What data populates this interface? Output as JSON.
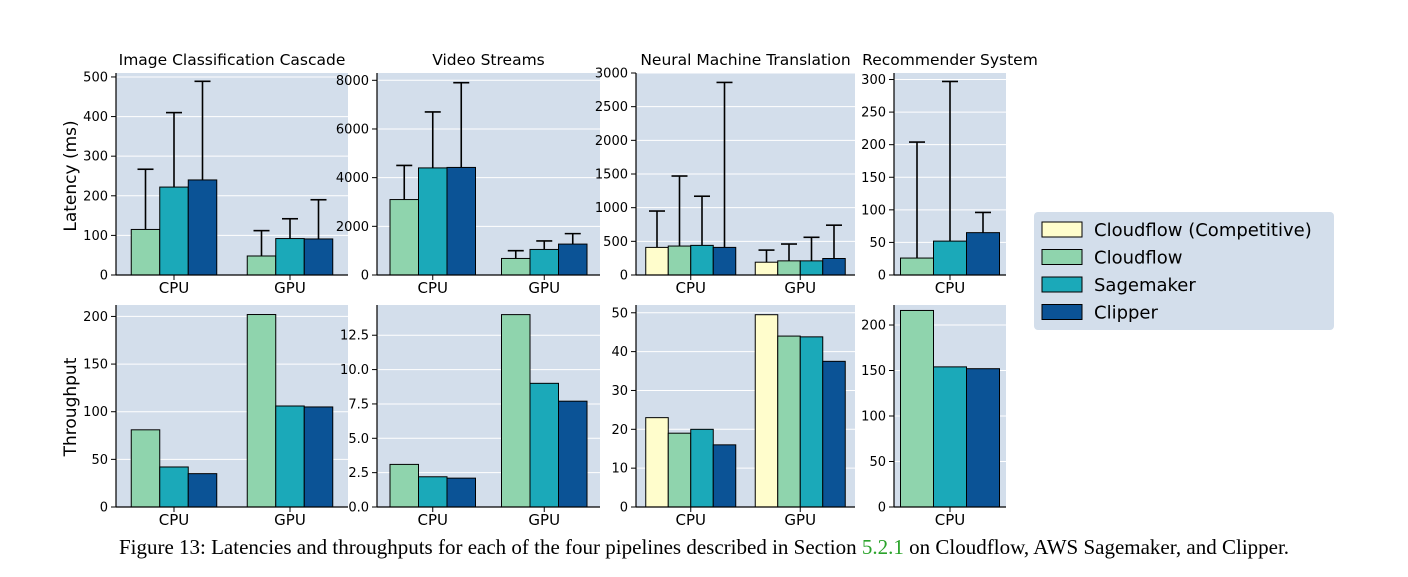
{
  "colors": {
    "panel_bg": "#d3deeb",
    "grid": "#ffffff",
    "cloudflow_competitive": "#fffdcc",
    "cloudflow": "#8fd4ad",
    "sagemaker": "#1ba9b9",
    "clipper": "#0b5396",
    "legend_bg": "#d3deeb",
    "caption_ref": "#2aa32a"
  },
  "legend": {
    "items": [
      {
        "label": "Cloudflow (Competitive)",
        "color_key": "cloudflow_competitive"
      },
      {
        "label": "Cloudflow",
        "color_key": "cloudflow"
      },
      {
        "label": "Sagemaker",
        "color_key": "sagemaker"
      },
      {
        "label": "Clipper",
        "color_key": "clipper"
      }
    ]
  },
  "row_labels": {
    "latency": "Latency (ms)",
    "throughput": "Throughput"
  },
  "caption": {
    "prefix": "Figure 13: Latencies and throughputs for each of the four pipelines described in Section ",
    "ref": "5.2.1",
    "suffix": " on Cloudflow, AWS Sagemaker, and Clipper."
  },
  "chart_data": [
    {
      "type": "bar",
      "id": "icc-latency",
      "title": "Image Classification Cascade",
      "xlabel": "",
      "ylabel": "Latency (ms)",
      "ylim": [
        0,
        510
      ],
      "yticks": [
        0,
        100,
        200,
        300,
        400,
        500
      ],
      "ytick_labels": [
        "0",
        "100",
        "200",
        "300",
        "400",
        "500"
      ],
      "categories": [
        "CPU",
        "GPU"
      ],
      "series": [
        {
          "name": "Cloudflow",
          "color_key": "cloudflow",
          "values": [
            115,
            48
          ],
          "err_upper": [
            267,
            112
          ]
        },
        {
          "name": "Sagemaker",
          "color_key": "sagemaker",
          "values": [
            222,
            92
          ],
          "err_upper": [
            410,
            142
          ]
        },
        {
          "name": "Clipper",
          "color_key": "clipper",
          "values": [
            240,
            91
          ],
          "err_upper": [
            489,
            190
          ]
        }
      ]
    },
    {
      "type": "bar",
      "id": "vs-latency",
      "title": "Video Streams",
      "xlabel": "",
      "ylabel": "",
      "ylim": [
        0,
        8300
      ],
      "yticks": [
        0,
        2000,
        4000,
        6000,
        8000
      ],
      "ytick_labels": [
        "0",
        "2000",
        "4000",
        "6000",
        "8000"
      ],
      "categories": [
        "CPU",
        "GPU"
      ],
      "series": [
        {
          "name": "Cloudflow",
          "color_key": "cloudflow",
          "values": [
            3100,
            680
          ],
          "err_upper": [
            4500,
            1000
          ]
        },
        {
          "name": "Sagemaker",
          "color_key": "sagemaker",
          "values": [
            4400,
            1050
          ],
          "err_upper": [
            6700,
            1400
          ]
        },
        {
          "name": "Clipper",
          "color_key": "clipper",
          "values": [
            4420,
            1270
          ],
          "err_upper": [
            7900,
            1700
          ]
        }
      ]
    },
    {
      "type": "bar",
      "id": "nmt-latency",
      "title": "Neural Machine Translation",
      "xlabel": "",
      "ylabel": "",
      "ylim": [
        0,
        3000
      ],
      "yticks": [
        0,
        500,
        1000,
        1500,
        2000,
        2500,
        3000
      ],
      "ytick_labels": [
        "0",
        "500",
        "1000",
        "1500",
        "2000",
        "2500",
        "3000"
      ],
      "categories": [
        "CPU",
        "GPU"
      ],
      "series": [
        {
          "name": "Cloudflow (Competitive)",
          "color_key": "cloudflow_competitive",
          "values": [
            410,
            190
          ],
          "err_upper": [
            950,
            370
          ]
        },
        {
          "name": "Cloudflow",
          "color_key": "cloudflow",
          "values": [
            430,
            210
          ],
          "err_upper": [
            1470,
            460
          ]
        },
        {
          "name": "Sagemaker",
          "color_key": "sagemaker",
          "values": [
            440,
            210
          ],
          "err_upper": [
            1170,
            560
          ]
        },
        {
          "name": "Clipper",
          "color_key": "clipper",
          "values": [
            410,
            245
          ],
          "err_upper": [
            2860,
            740
          ]
        }
      ]
    },
    {
      "type": "bar",
      "id": "rs-latency",
      "title": "Recommender System",
      "xlabel": "",
      "ylabel": "",
      "ylim": [
        0,
        310
      ],
      "yticks": [
        0,
        50,
        100,
        150,
        200,
        250,
        300
      ],
      "ytick_labels": [
        "0",
        "50",
        "100",
        "150",
        "200",
        "250",
        "300"
      ],
      "categories": [
        "CPU"
      ],
      "series": [
        {
          "name": "Cloudflow",
          "color_key": "cloudflow",
          "values": [
            26
          ],
          "err_upper": [
            204
          ]
        },
        {
          "name": "Sagemaker",
          "color_key": "sagemaker",
          "values": [
            52
          ],
          "err_upper": [
            297
          ]
        },
        {
          "name": "Clipper",
          "color_key": "clipper",
          "values": [
            65
          ],
          "err_upper": [
            96
          ]
        }
      ]
    },
    {
      "type": "bar",
      "id": "icc-throughput",
      "title": "",
      "xlabel": "",
      "ylabel": "Throughput",
      "ylim": [
        0,
        212
      ],
      "yticks": [
        0,
        50,
        100,
        150,
        200
      ],
      "ytick_labels": [
        "0",
        "50",
        "100",
        "150",
        "200"
      ],
      "categories": [
        "CPU",
        "GPU"
      ],
      "series": [
        {
          "name": "Cloudflow",
          "color_key": "cloudflow",
          "values": [
            81,
            202
          ]
        },
        {
          "name": "Sagemaker",
          "color_key": "sagemaker",
          "values": [
            42,
            106
          ]
        },
        {
          "name": "Clipper",
          "color_key": "clipper",
          "values": [
            35,
            105
          ]
        }
      ]
    },
    {
      "type": "bar",
      "id": "vs-throughput",
      "title": "",
      "xlabel": "",
      "ylabel": "",
      "ylim": [
        0,
        14.7
      ],
      "yticks": [
        0,
        2.5,
        5,
        7.5,
        10,
        12.5
      ],
      "ytick_labels": [
        "0.0",
        "2.5",
        "5.0",
        "7.5",
        "10.0",
        "12.5"
      ],
      "categories": [
        "CPU",
        "GPU"
      ],
      "series": [
        {
          "name": "Cloudflow",
          "color_key": "cloudflow",
          "values": [
            3.1,
            14.0
          ]
        },
        {
          "name": "Sagemaker",
          "color_key": "sagemaker",
          "values": [
            2.2,
            9.0
          ]
        },
        {
          "name": "Clipper",
          "color_key": "clipper",
          "values": [
            2.1,
            7.7
          ]
        }
      ]
    },
    {
      "type": "bar",
      "id": "nmt-throughput",
      "title": "",
      "xlabel": "",
      "ylabel": "",
      "ylim": [
        0,
        52
      ],
      "yticks": [
        0,
        10,
        20,
        30,
        40,
        50
      ],
      "ytick_labels": [
        "0",
        "10",
        "20",
        "30",
        "40",
        "50"
      ],
      "categories": [
        "CPU",
        "GPU"
      ],
      "series": [
        {
          "name": "Cloudflow (Competitive)",
          "color_key": "cloudflow_competitive",
          "values": [
            23,
            49.5
          ]
        },
        {
          "name": "Cloudflow",
          "color_key": "cloudflow",
          "values": [
            19,
            44
          ]
        },
        {
          "name": "Sagemaker",
          "color_key": "sagemaker",
          "values": [
            20,
            43.8
          ]
        },
        {
          "name": "Clipper",
          "color_key": "clipper",
          "values": [
            16,
            37.5
          ]
        }
      ]
    },
    {
      "type": "bar",
      "id": "rs-throughput",
      "title": "",
      "xlabel": "",
      "ylabel": "",
      "ylim": [
        0,
        222
      ],
      "yticks": [
        0,
        50,
        100,
        150,
        200
      ],
      "ytick_labels": [
        "0",
        "50",
        "100",
        "150",
        "200"
      ],
      "categories": [
        "CPU"
      ],
      "series": [
        {
          "name": "Cloudflow",
          "color_key": "cloudflow",
          "values": [
            216
          ]
        },
        {
          "name": "Sagemaker",
          "color_key": "sagemaker",
          "values": [
            154
          ]
        },
        {
          "name": "Clipper",
          "color_key": "clipper",
          "values": [
            152
          ]
        }
      ]
    }
  ]
}
